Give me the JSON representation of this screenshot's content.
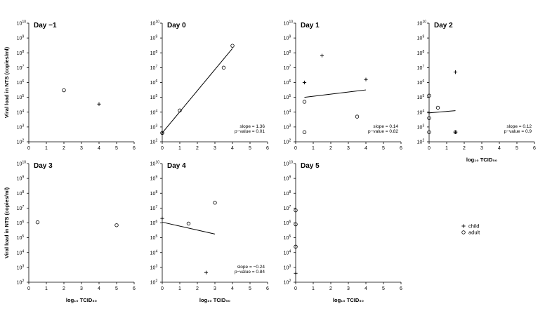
{
  "ylabel": "Viral load in NTS (copies/ml)",
  "xlabel": "log₁₀ TCID₅₀",
  "legend": {
    "items": [
      {
        "marker": "plus",
        "label": "child"
      },
      {
        "marker": "circle",
        "label": "adult"
      }
    ],
    "placement": "right"
  },
  "chart_data": [
    {
      "type": "scatter",
      "title": "Day −1",
      "xlim": [
        0,
        6
      ],
      "ylim_log10": [
        2,
        10
      ],
      "yscale": "log",
      "show_ylabel": true,
      "show_xlabel": false,
      "series": [
        {
          "name": "child",
          "marker": "plus",
          "points": [
            [
              4,
              35000
            ]
          ]
        },
        {
          "name": "adult",
          "marker": "circle",
          "points": [
            [
              2,
              300000
            ]
          ]
        }
      ]
    },
    {
      "type": "scatter",
      "title": "Day 0",
      "xlim": [
        0,
        6
      ],
      "ylim_log10": [
        2,
        10
      ],
      "yscale": "log",
      "show_ylabel": false,
      "show_xlabel": false,
      "series": [
        {
          "name": "child",
          "marker": "plus",
          "points": [
            [
              0,
              400
            ]
          ]
        },
        {
          "name": "adult",
          "marker": "circle",
          "points": [
            [
              0,
              400
            ],
            [
              1,
              13000
            ],
            [
              3.5,
              10000000
            ],
            [
              4,
              300000000
            ]
          ]
        }
      ],
      "fit": {
        "x": [
          0,
          4
        ],
        "y_log10": [
          2.6,
          8.3
        ]
      },
      "annotation": {
        "slope": "slope = 1.36",
        "pvalue": "p−value = 0.01"
      }
    },
    {
      "type": "scatter",
      "title": "Day 1",
      "xlim": [
        0,
        6
      ],
      "ylim_log10": [
        2,
        10
      ],
      "yscale": "log",
      "show_ylabel": false,
      "show_xlabel": false,
      "series": [
        {
          "name": "child",
          "marker": "plus",
          "points": [
            [
              0.5,
              1000000
            ],
            [
              1.5,
              65000000
            ],
            [
              4,
              1600000
            ]
          ]
        },
        {
          "name": "adult",
          "marker": "circle",
          "points": [
            [
              0.5,
              50000
            ],
            [
              0.5,
              450
            ],
            [
              3.5,
              5000
            ]
          ]
        }
      ],
      "fit": {
        "x": [
          0.5,
          4
        ],
        "y_log10": [
          5.0,
          5.5
        ]
      },
      "annotation": {
        "slope": "slope = 0.14",
        "pvalue": "p−value = 0.82"
      }
    },
    {
      "type": "scatter",
      "title": "Day 2",
      "xlim": [
        0,
        6
      ],
      "ylim_log10": [
        2,
        10
      ],
      "yscale": "log",
      "show_ylabel": false,
      "show_xlabel": true,
      "series": [
        {
          "name": "child",
          "marker": "plus",
          "points": [
            [
              1.5,
              5000000
            ],
            [
              1.5,
              450
            ],
            [
              0,
              9000
            ]
          ]
        },
        {
          "name": "adult",
          "marker": "circle",
          "points": [
            [
              0,
              130000
            ],
            [
              0,
              4000
            ],
            [
              0,
              450
            ],
            [
              0.5,
              20000
            ],
            [
              1.5,
              450
            ]
          ]
        }
      ],
      "fit": {
        "x": [
          0,
          1.5
        ],
        "y_log10": [
          3.95,
          4.1
        ]
      },
      "annotation": {
        "slope": "slope = 0.12",
        "pvalue": "p−value = 0.9"
      }
    },
    {
      "type": "scatter",
      "title": "Day 3",
      "xlim": [
        0,
        6
      ],
      "ylim_log10": [
        2,
        10
      ],
      "yscale": "log",
      "show_ylabel": true,
      "show_xlabel": true,
      "series": [
        {
          "name": "child",
          "marker": "plus",
          "points": []
        },
        {
          "name": "adult",
          "marker": "circle",
          "points": [
            [
              0.5,
              1100000
            ],
            [
              5,
              700000
            ]
          ]
        }
      ]
    },
    {
      "type": "scatter",
      "title": "Day 4",
      "xlim": [
        0,
        6
      ],
      "ylim_log10": [
        2,
        10
      ],
      "yscale": "log",
      "show_ylabel": false,
      "show_xlabel": true,
      "series": [
        {
          "name": "child",
          "marker": "plus",
          "points": [
            [
              0,
              2000000
            ],
            [
              2.5,
              450
            ]
          ]
        },
        {
          "name": "adult",
          "marker": "circle",
          "points": [
            [
              1.5,
              900000
            ],
            [
              3,
              23000000
            ]
          ]
        }
      ],
      "fit": {
        "x": [
          0,
          3
        ],
        "y_log10": [
          6.05,
          5.25
        ]
      },
      "annotation": {
        "slope": "slope = −0.24",
        "pvalue": "p−value = 0.84"
      }
    },
    {
      "type": "scatter",
      "title": "Day 5",
      "xlim": [
        0,
        6
      ],
      "ylim_log10": [
        2,
        10
      ],
      "yscale": "log",
      "show_ylabel": false,
      "show_xlabel": true,
      "series": [
        {
          "name": "child",
          "marker": "plus",
          "points": [
            [
              0,
              400
            ]
          ]
        },
        {
          "name": "adult",
          "marker": "circle",
          "points": [
            [
              0,
              7000000
            ],
            [
              0,
              800000
            ],
            [
              0,
              25000
            ]
          ]
        }
      ]
    }
  ]
}
